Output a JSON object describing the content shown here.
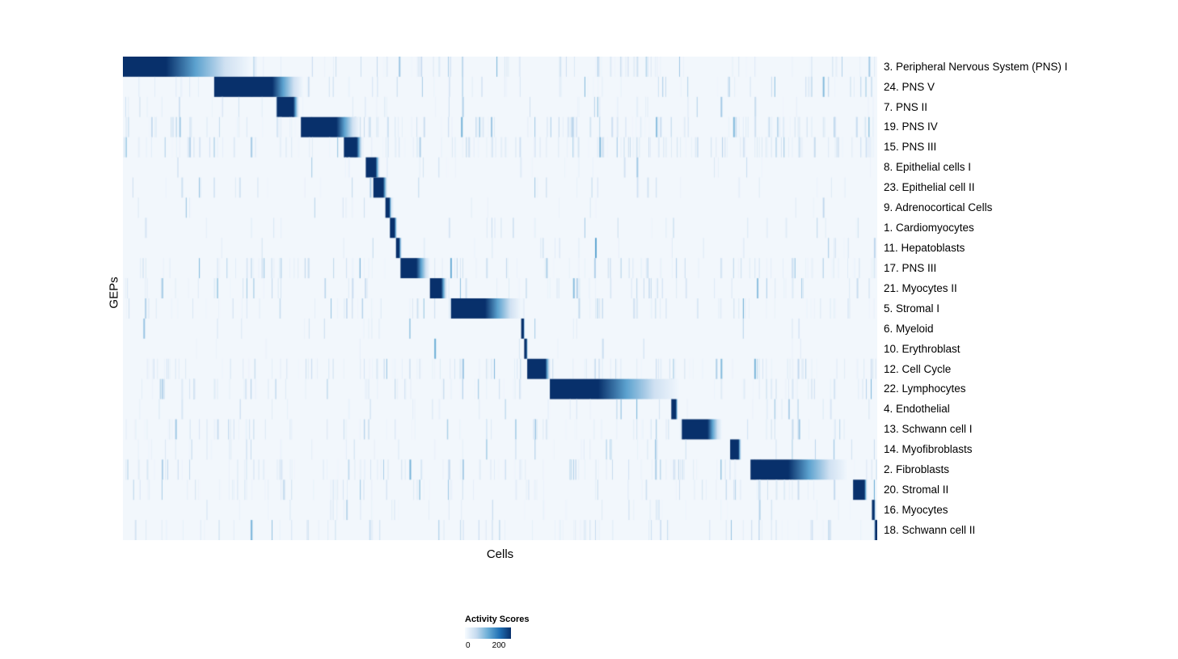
{
  "chart_data": {
    "type": "heatmap",
    "title": "",
    "xlabel": "Cells",
    "ylabel": "GEPs",
    "colormap_stops": [
      "#f7fbff",
      "#c6dbef",
      "#6baed6",
      "#2171b5",
      "#08306b"
    ],
    "plot_background": "#f2f7fc",
    "legend": {
      "title": "Activity Scores",
      "min": 0,
      "max": 200,
      "min_label": "0",
      "max_label": "200"
    },
    "rows": [
      {
        "label": "3. Peripheral Nervous System (PNS) I",
        "start": 0.0,
        "peak": 0.057,
        "end": 0.169,
        "noise": 0.35
      },
      {
        "label": "24. PNS V",
        "start": 0.121,
        "peak": 0.198,
        "end": 0.239,
        "noise": 0.3
      },
      {
        "label": "7. PNS II",
        "start": 0.204,
        "peak": 0.226,
        "end": 0.234,
        "noise": 0.18
      },
      {
        "label": "19. PNS IV",
        "start": 0.236,
        "peak": 0.283,
        "end": 0.314,
        "noise": 0.5
      },
      {
        "label": "15. PNS III",
        "start": 0.293,
        "peak": 0.31,
        "end": 0.318,
        "noise": 0.5
      },
      {
        "label": "8. Epithelial cells I",
        "start": 0.322,
        "peak": 0.335,
        "end": 0.341,
        "noise": 0.1
      },
      {
        "label": "23. Epithelial cell II",
        "start": 0.332,
        "peak": 0.345,
        "end": 0.351,
        "noise": 0.12
      },
      {
        "label": "9. Adrenocortical Cells",
        "start": 0.348,
        "peak": 0.353,
        "end": 0.357,
        "noise": 0.08
      },
      {
        "label": "1. Cardiomyocytes",
        "start": 0.354,
        "peak": 0.36,
        "end": 0.364,
        "noise": 0.1
      },
      {
        "label": "11. Hepatoblasts",
        "start": 0.362,
        "peak": 0.366,
        "end": 0.37,
        "noise": 0.08
      },
      {
        "label": "17. PNS III",
        "start": 0.368,
        "peak": 0.389,
        "end": 0.407,
        "noise": 0.4
      },
      {
        "label": "21. Myocytes II",
        "start": 0.407,
        "peak": 0.422,
        "end": 0.43,
        "noise": 0.25
      },
      {
        "label": "5. Stromal I",
        "start": 0.435,
        "peak": 0.48,
        "end": 0.528,
        "noise": 0.3
      },
      {
        "label": "6. Myeloid",
        "start": 0.528,
        "peak": 0.531,
        "end": 0.533,
        "noise": 0.05
      },
      {
        "label": "10. Erythroblast",
        "start": 0.532,
        "peak": 0.535,
        "end": 0.537,
        "noise": 0.05
      },
      {
        "label": "12. Cell Cycle",
        "start": 0.536,
        "peak": 0.56,
        "end": 0.567,
        "noise": 0.5
      },
      {
        "label": "22. Lymphocytes",
        "start": 0.566,
        "peak": 0.63,
        "end": 0.737,
        "noise": 0.35
      },
      {
        "label": "4. Endothelial",
        "start": 0.727,
        "peak": 0.733,
        "end": 0.736,
        "noise": 0.1
      },
      {
        "label": "13. Schwann cell I",
        "start": 0.741,
        "peak": 0.775,
        "end": 0.794,
        "noise": 0.3
      },
      {
        "label": "14. Myofibroblasts",
        "start": 0.805,
        "peak": 0.816,
        "end": 0.82,
        "noise": 0.15
      },
      {
        "label": "2. Fibroblasts",
        "start": 0.832,
        "peak": 0.882,
        "end": 0.96,
        "noise": 0.45
      },
      {
        "label": "20. Stromal II",
        "start": 0.968,
        "peak": 0.983,
        "end": 0.987,
        "noise": 0.35
      },
      {
        "label": "16. Myocytes",
        "start": 0.993,
        "peak": 0.996,
        "end": 0.998,
        "noise": 0.15
      },
      {
        "label": "18. Schwann cell II",
        "start": 0.997,
        "peak": 1.0,
        "end": 1.0,
        "noise": 0.3
      }
    ]
  }
}
